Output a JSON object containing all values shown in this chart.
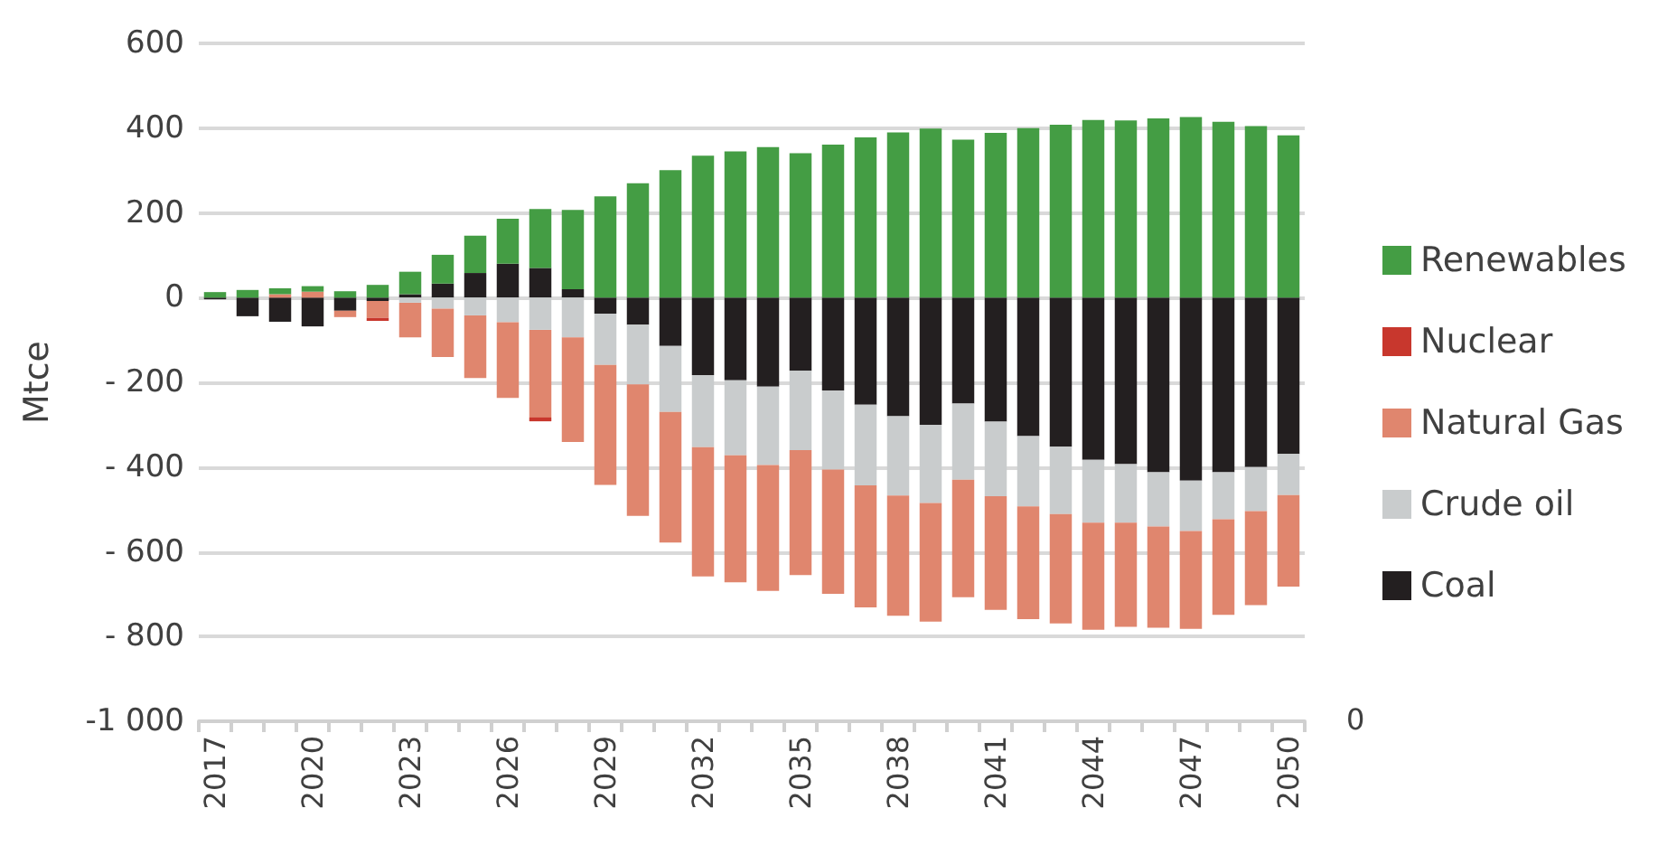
{
  "chart_data": {
    "type": "bar",
    "stacked": true,
    "ylabel": "Mtce",
    "categories": [
      "2017",
      null,
      null,
      "2020",
      null,
      null,
      "2023",
      null,
      null,
      "2026",
      null,
      null,
      "2029",
      null,
      null,
      "2032",
      null,
      null,
      "2035",
      null,
      null,
      "2038",
      null,
      null,
      "2041",
      null,
      null,
      "2044",
      null,
      null,
      "2047",
      null,
      null,
      "2050"
    ],
    "series": [
      {
        "name": "Coal",
        "color": "#231f20",
        "values": [
          -4,
          -44,
          -57,
          -68,
          -31,
          -8,
          8,
          33,
          58,
          80,
          70,
          20,
          -38,
          -64,
          -114,
          -183,
          -195,
          -210,
          -173,
          -219,
          -253,
          -280,
          -300,
          -250,
          -293,
          -327,
          -352,
          -383,
          -393,
          -412,
          -432,
          -412,
          -400,
          -369
        ]
      },
      {
        "name": "Crude oil",
        "color": "#c9cccd",
        "values": [
          null,
          null,
          null,
          null,
          null,
          null,
          -12,
          -26,
          -42,
          -58,
          -76,
          -94,
          -121,
          -141,
          -156,
          -170,
          -177,
          -185,
          -187,
          -187,
          -190,
          -187,
          -185,
          -180,
          -176,
          -166,
          -159,
          -148,
          -138,
          -128,
          -119,
          -111,
          -104,
          -97
        ]
      },
      {
        "name": "Natural Gas",
        "color": "#e0866e",
        "values": [
          null,
          null,
          8,
          14,
          -15,
          -40,
          -82,
          -114,
          -148,
          -179,
          -207,
          -247,
          -283,
          -310,
          -308,
          -305,
          -300,
          -297,
          -295,
          -293,
          -288,
          -284,
          -280,
          -277,
          -268,
          -266,
          -258,
          -253,
          -246,
          -239,
          -231,
          -226,
          -222,
          -216
        ]
      },
      {
        "name": "Nuclear",
        "color": "#c8372d",
        "values": [
          null,
          null,
          null,
          null,
          null,
          -7,
          null,
          null,
          null,
          null,
          -9,
          null,
          null,
          null,
          null,
          null,
          null,
          null,
          null,
          null,
          null,
          null,
          null,
          null,
          null,
          null,
          null,
          null,
          null,
          null,
          null,
          null,
          null,
          null
        ]
      },
      {
        "name": "Renewables",
        "color": "#449d44",
        "values": [
          13,
          18,
          14,
          13,
          15,
          30,
          53,
          68,
          88,
          106,
          139,
          187,
          239,
          270,
          301,
          335,
          345,
          355,
          341,
          361,
          378,
          390,
          399,
          373,
          389,
          400,
          408,
          419,
          418,
          423,
          426,
          415,
          405,
          383
        ]
      }
    ],
    "ylim": [
      -1000,
      600
    ],
    "yticks": [
      {
        "value": 600,
        "label": "600"
      },
      {
        "value": 400,
        "label": "400"
      },
      {
        "value": 200,
        "label": "200"
      },
      {
        "value": 0,
        "label": "0"
      },
      {
        "value": -200,
        "label": "- 200"
      },
      {
        "value": -400,
        "label": "- 400"
      },
      {
        "value": -600,
        "label": "- 600"
      },
      {
        "value": -800,
        "label": "- 800"
      },
      {
        "value": -1000,
        "label": "-1 000"
      }
    ],
    "grid": "y",
    "legend": "right",
    "annotations": [
      "0"
    ]
  }
}
